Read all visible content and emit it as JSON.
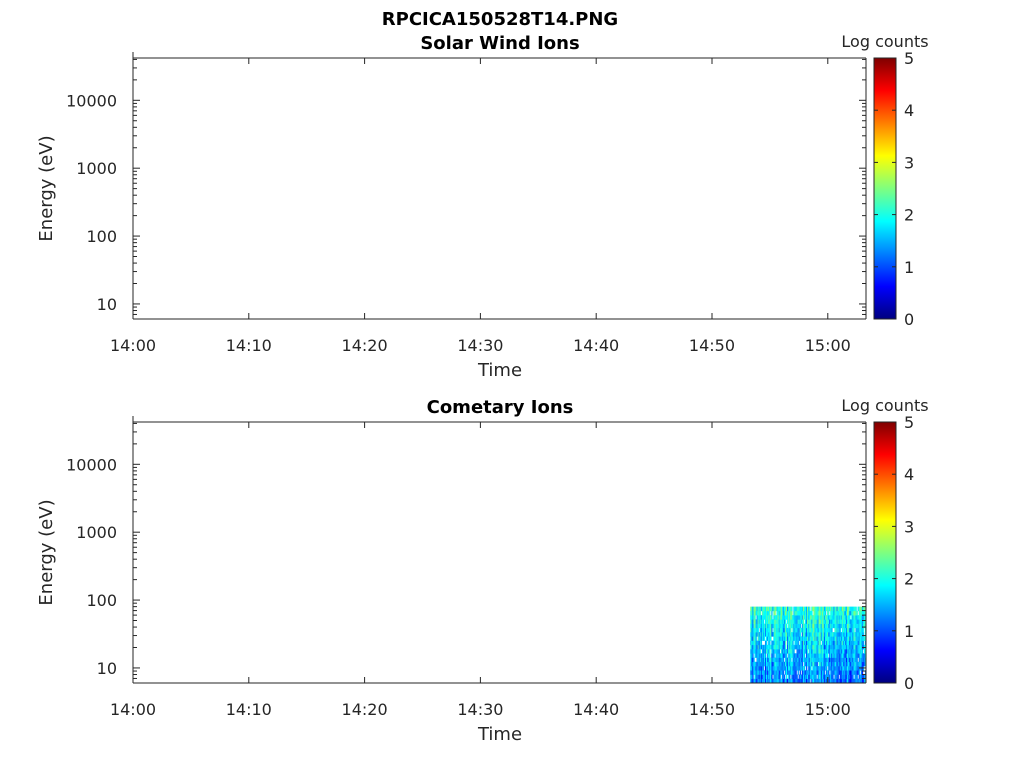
{
  "figure_title": "RPCICA150528T14.PNG",
  "colormap": {
    "name": "jet",
    "stops": [
      "#00007f",
      "#0000ff",
      "#007fff",
      "#00ffff",
      "#7fff7f",
      "#ffff00",
      "#ff7f00",
      "#ff0000",
      "#7f0000"
    ]
  },
  "chart_data": [
    {
      "type": "heatmap",
      "title": "Solar Wind Ions",
      "xlabel": "Time",
      "ylabel": "Energy (eV)",
      "x_ticks": [
        "14:00",
        "14:10",
        "14:20",
        "14:30",
        "14:40",
        "14:50",
        "15:00"
      ],
      "x_range_minutes": [
        0,
        63.3
      ],
      "y_scale": "log",
      "y_ticks": [
        10,
        100,
        1000,
        10000
      ],
      "y_tick_labels": [
        "10",
        "100",
        "1000",
        "10000"
      ],
      "y_range": [
        6,
        42000
      ],
      "colorbar": {
        "label": "Log counts",
        "range": [
          0,
          5
        ],
        "ticks": [
          "0",
          "1",
          "2",
          "3",
          "4",
          "5"
        ]
      },
      "data": []
    },
    {
      "type": "heatmap",
      "title": "Cometary Ions",
      "xlabel": "Time",
      "ylabel": "Energy (eV)",
      "x_ticks": [
        "14:00",
        "14:10",
        "14:20",
        "14:30",
        "14:40",
        "14:50",
        "15:00"
      ],
      "x_range_minutes": [
        0,
        63.3
      ],
      "y_scale": "log",
      "y_ticks": [
        10,
        100,
        1000,
        10000
      ],
      "y_tick_labels": [
        "10",
        "100",
        "1000",
        "10000"
      ],
      "y_range": [
        6,
        42000
      ],
      "colorbar": {
        "label": "Log counts",
        "range": [
          0,
          5
        ],
        "ticks": [
          "0",
          "1",
          "2",
          "3",
          "4",
          "5"
        ]
      },
      "data": [
        {
          "t_range": [
            53.3,
            63.3
          ],
          "e_range": [
            6,
            80
          ],
          "log_counts_range": [
            0.5,
            2.8
          ]
        }
      ]
    }
  ]
}
